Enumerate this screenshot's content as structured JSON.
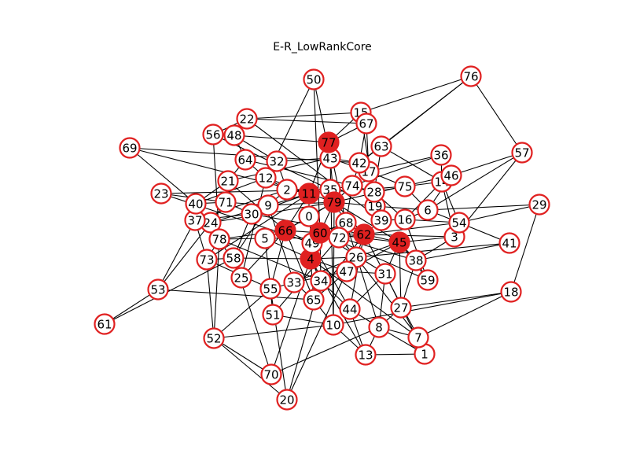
{
  "title": "E-R_LowRankCore",
  "colors": {
    "node_stroke": "#e02020",
    "core_fill": "#e02020",
    "regular_fill": "#ffffff",
    "edge": "#000000"
  },
  "graph": {
    "core_nodes": [
      "11",
      "79",
      "60",
      "62",
      "45",
      "66",
      "4",
      "77"
    ],
    "edges": [
      [
        "50",
        "43"
      ],
      [
        "50",
        "60"
      ],
      [
        "50",
        "12"
      ],
      [
        "76",
        "63"
      ],
      [
        "76",
        "57"
      ],
      [
        "76",
        "42"
      ],
      [
        "76",
        "15"
      ],
      [
        "57",
        "46"
      ],
      [
        "57",
        "6"
      ],
      [
        "57",
        "3"
      ],
      [
        "29",
        "54"
      ],
      [
        "29",
        "18"
      ],
      [
        "29",
        "6"
      ],
      [
        "41",
        "54"
      ],
      [
        "41",
        "26"
      ],
      [
        "41",
        "38"
      ],
      [
        "18",
        "7"
      ],
      [
        "18",
        "27"
      ],
      [
        "18",
        "10"
      ],
      [
        "61",
        "53"
      ],
      [
        "61",
        "58"
      ],
      [
        "53",
        "24"
      ],
      [
        "53",
        "65"
      ],
      [
        "53",
        "37"
      ],
      [
        "69",
        "40"
      ],
      [
        "69",
        "42"
      ],
      [
        "69",
        "11"
      ],
      [
        "23",
        "35"
      ],
      [
        "23",
        "49"
      ],
      [
        "23",
        "71"
      ],
      [
        "52",
        "70"
      ],
      [
        "52",
        "20"
      ],
      [
        "52",
        "78"
      ],
      [
        "52",
        "73"
      ],
      [
        "52",
        "10"
      ],
      [
        "52",
        "55"
      ],
      [
        "70",
        "4"
      ],
      [
        "70",
        "8"
      ],
      [
        "70",
        "58"
      ],
      [
        "20",
        "47"
      ],
      [
        "20",
        "34"
      ],
      [
        "20",
        "55"
      ],
      [
        "13",
        "1"
      ],
      [
        "13",
        "10"
      ],
      [
        "13",
        "44"
      ],
      [
        "13",
        "8"
      ],
      [
        "13",
        "4"
      ],
      [
        "1",
        "8"
      ],
      [
        "1",
        "31"
      ],
      [
        "7",
        "8"
      ],
      [
        "7",
        "26"
      ],
      [
        "7",
        "4"
      ],
      [
        "7",
        "62"
      ],
      [
        "8",
        "44"
      ],
      [
        "8",
        "27"
      ],
      [
        "8",
        "68"
      ],
      [
        "8",
        "31"
      ],
      [
        "10",
        "79"
      ],
      [
        "10",
        "43"
      ],
      [
        "10",
        "51"
      ],
      [
        "10",
        "65"
      ],
      [
        "27",
        "45"
      ],
      [
        "27",
        "38"
      ],
      [
        "51",
        "55"
      ],
      [
        "51",
        "72"
      ],
      [
        "44",
        "49"
      ],
      [
        "44",
        "31"
      ],
      [
        "44",
        "62"
      ],
      [
        "44",
        "34"
      ],
      [
        "59",
        "38"
      ],
      [
        "59",
        "60"
      ],
      [
        "59",
        "45"
      ],
      [
        "59",
        "16"
      ],
      [
        "3",
        "62"
      ],
      [
        "3",
        "14"
      ],
      [
        "3",
        "45"
      ],
      [
        "3",
        "38"
      ],
      [
        "38",
        "45"
      ],
      [
        "38",
        "72"
      ],
      [
        "31",
        "60"
      ],
      [
        "31",
        "45"
      ],
      [
        "31",
        "47"
      ],
      [
        "65",
        "4"
      ],
      [
        "65",
        "62"
      ],
      [
        "65",
        "47"
      ],
      [
        "65",
        "33"
      ],
      [
        "65",
        "66"
      ],
      [
        "34",
        "4"
      ],
      [
        "34",
        "60"
      ],
      [
        "34",
        "78"
      ],
      [
        "33",
        "55"
      ],
      [
        "33",
        "9"
      ],
      [
        "33",
        "26"
      ],
      [
        "55",
        "73"
      ],
      [
        "55",
        "5"
      ],
      [
        "55",
        "66"
      ],
      [
        "25",
        "66"
      ],
      [
        "25",
        "24"
      ],
      [
        "25",
        "12"
      ],
      [
        "73",
        "78"
      ],
      [
        "73",
        "58"
      ],
      [
        "73",
        "37"
      ],
      [
        "73",
        "11"
      ],
      [
        "58",
        "4"
      ],
      [
        "58",
        "9"
      ],
      [
        "58",
        "30"
      ],
      [
        "78",
        "66"
      ],
      [
        "78",
        "24"
      ],
      [
        "78",
        "37"
      ],
      [
        "78",
        "5"
      ],
      [
        "24",
        "11"
      ],
      [
        "24",
        "71"
      ],
      [
        "24",
        "79"
      ],
      [
        "37",
        "40"
      ],
      [
        "37",
        "30"
      ],
      [
        "37",
        "2"
      ],
      [
        "40",
        "71"
      ],
      [
        "40",
        "12"
      ],
      [
        "40",
        "21"
      ],
      [
        "71",
        "21"
      ],
      [
        "71",
        "9"
      ],
      [
        "71",
        "30"
      ],
      [
        "30",
        "9"
      ],
      [
        "30",
        "11"
      ],
      [
        "30",
        "62"
      ],
      [
        "9",
        "2"
      ],
      [
        "9",
        "79"
      ],
      [
        "21",
        "64"
      ],
      [
        "21",
        "43"
      ],
      [
        "21",
        "66"
      ],
      [
        "64",
        "48"
      ],
      [
        "64",
        "12"
      ],
      [
        "64",
        "74"
      ],
      [
        "48",
        "56"
      ],
      [
        "48",
        "77"
      ],
      [
        "48",
        "32"
      ],
      [
        "56",
        "22"
      ],
      [
        "56",
        "35"
      ],
      [
        "56",
        "78"
      ],
      [
        "22",
        "15"
      ],
      [
        "22",
        "67"
      ],
      [
        "22",
        "39"
      ],
      [
        "15",
        "67"
      ],
      [
        "15",
        "77"
      ],
      [
        "15",
        "19"
      ],
      [
        "67",
        "42"
      ],
      [
        "67",
        "17"
      ],
      [
        "67",
        "77"
      ],
      [
        "63",
        "42"
      ],
      [
        "63",
        "14"
      ],
      [
        "63",
        "28"
      ],
      [
        "36",
        "14"
      ],
      [
        "36",
        "74"
      ],
      [
        "36",
        "17"
      ],
      [
        "46",
        "14"
      ],
      [
        "46",
        "6"
      ],
      [
        "46",
        "79"
      ],
      [
        "14",
        "54"
      ],
      [
        "14",
        "16"
      ],
      [
        "14",
        "75"
      ],
      [
        "54",
        "6"
      ],
      [
        "54",
        "16"
      ],
      [
        "54",
        "62"
      ],
      [
        "6",
        "16"
      ],
      [
        "6",
        "75"
      ],
      [
        "6",
        "19"
      ],
      [
        "16",
        "39"
      ],
      [
        "16",
        "28"
      ],
      [
        "39",
        "19"
      ],
      [
        "39",
        "62"
      ],
      [
        "19",
        "28"
      ],
      [
        "19",
        "79"
      ],
      [
        "28",
        "75"
      ],
      [
        "28",
        "74"
      ],
      [
        "75",
        "17"
      ],
      [
        "75",
        "11"
      ],
      [
        "17",
        "42"
      ],
      [
        "17",
        "43"
      ],
      [
        "42",
        "43"
      ],
      [
        "42",
        "74"
      ],
      [
        "43",
        "77"
      ],
      [
        "43",
        "32"
      ],
      [
        "32",
        "12"
      ],
      [
        "32",
        "2"
      ],
      [
        "12",
        "2"
      ],
      [
        "12",
        "11"
      ],
      [
        "2",
        "11"
      ],
      [
        "2",
        "35"
      ],
      [
        "11",
        "35"
      ],
      [
        "11",
        "79"
      ],
      [
        "35",
        "74"
      ],
      [
        "35",
        "79"
      ],
      [
        "74",
        "79"
      ],
      [
        "74",
        "68"
      ],
      [
        "79",
        "0"
      ],
      [
        "79",
        "68"
      ],
      [
        "79",
        "60"
      ],
      [
        "0",
        "11"
      ],
      [
        "0",
        "66"
      ],
      [
        "0",
        "49"
      ],
      [
        "0",
        "60"
      ],
      [
        "66",
        "5"
      ],
      [
        "66",
        "60"
      ],
      [
        "66",
        "49"
      ],
      [
        "5",
        "4"
      ],
      [
        "5",
        "72"
      ],
      [
        "49",
        "60"
      ],
      [
        "49",
        "4"
      ],
      [
        "60",
        "72"
      ],
      [
        "60",
        "62"
      ],
      [
        "60",
        "68"
      ],
      [
        "72",
        "26"
      ],
      [
        "72",
        "62"
      ],
      [
        "62",
        "45"
      ],
      [
        "62",
        "26"
      ],
      [
        "45",
        "26"
      ],
      [
        "45",
        "47"
      ],
      [
        "26",
        "47"
      ],
      [
        "26",
        "4"
      ],
      [
        "47",
        "4"
      ],
      [
        "47",
        "33"
      ],
      [
        "4",
        "34"
      ],
      [
        "68",
        "62"
      ],
      [
        "68",
        "77"
      ],
      [
        "79",
        "77"
      ],
      [
        "77",
        "11"
      ],
      [
        "62",
        "79"
      ],
      [
        "45",
        "79"
      ],
      [
        "66",
        "79"
      ],
      [
        "4",
        "60"
      ],
      [
        "11",
        "66"
      ],
      [
        "60",
        "45"
      ]
    ]
  }
}
